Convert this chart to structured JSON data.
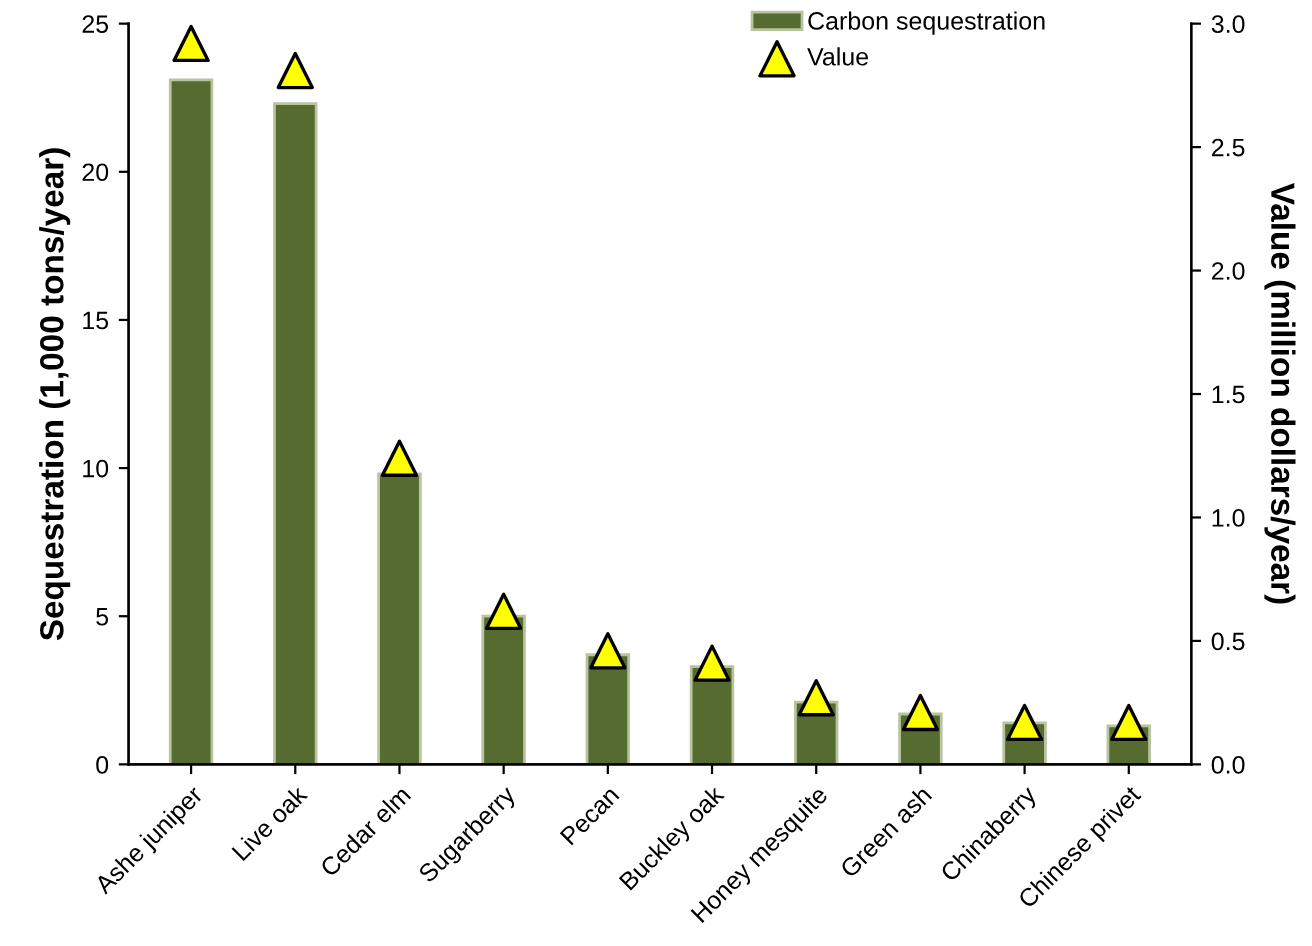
{
  "chart_data": {
    "type": "bar",
    "categories": [
      "Ashe juniper",
      "Live oak",
      "Cedar elm",
      "Sugarberry",
      "Pecan",
      "Buckley oak",
      "Honey mesquite",
      "Green ash",
      "Chinaberry",
      "Chinese privet"
    ],
    "series": [
      {
        "name": "Carbon sequestration",
        "color": "#556b2f",
        "values": [
          23.1,
          22.3,
          9.8,
          5.0,
          3.7,
          3.3,
          2.1,
          1.7,
          1.4,
          1.3
        ]
      },
      {
        "name": "Value",
        "type": "scatter",
        "axis": "y2",
        "color": "#ffff00",
        "marker": "triangle",
        "values": [
          2.92,
          2.81,
          1.24,
          0.62,
          0.46,
          0.41,
          0.27,
          0.21,
          0.17,
          0.17
        ]
      }
    ],
    "ylabel": "Sequestration (1,000 tons/year)",
    "y2label": "Value (million dollars/year)",
    "ylim": [
      0,
      25
    ],
    "yticks": [
      0,
      5,
      10,
      15,
      20,
      25
    ],
    "y2lim": [
      0,
      3
    ],
    "y2ticks": [
      {
        "value": 0,
        "label": "0.0"
      },
      {
        "value": 0.5,
        "label": "0.5"
      },
      {
        "value": 1,
        "label": "1.0"
      },
      {
        "value": 1.5,
        "label": "1.5"
      },
      {
        "value": 2,
        "label": "2.0"
      },
      {
        "value": 2.5,
        "label": "2.5"
      },
      {
        "value": 3,
        "label": "3.0"
      }
    ],
    "legend": "top",
    "grid": false
  }
}
